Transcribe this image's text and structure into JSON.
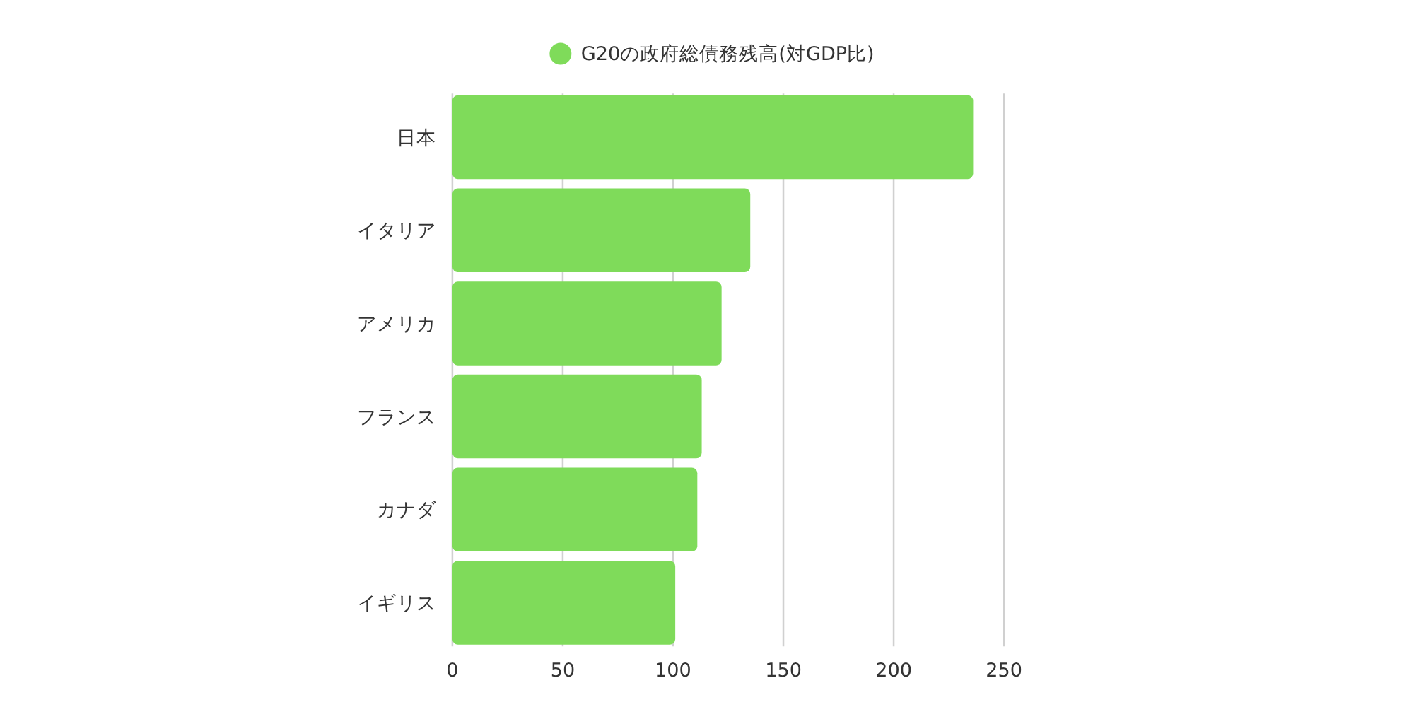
{
  "chart_data": {
    "type": "bar",
    "orientation": "horizontal",
    "categories": [
      "日本",
      "イタリア",
      "アメリカ",
      "フランス",
      "カナダ",
      "イギリス"
    ],
    "series": [
      {
        "name": "G20の政府総債務残高(対GDP比)",
        "color": "#7fdb5a",
        "values": [
          236,
          135,
          122,
          113,
          111,
          101
        ]
      }
    ],
    "xlim": [
      0,
      250
    ],
    "xticks": [
      0,
      50,
      100,
      150,
      200,
      250
    ],
    "grid": "x",
    "legend": "top"
  }
}
